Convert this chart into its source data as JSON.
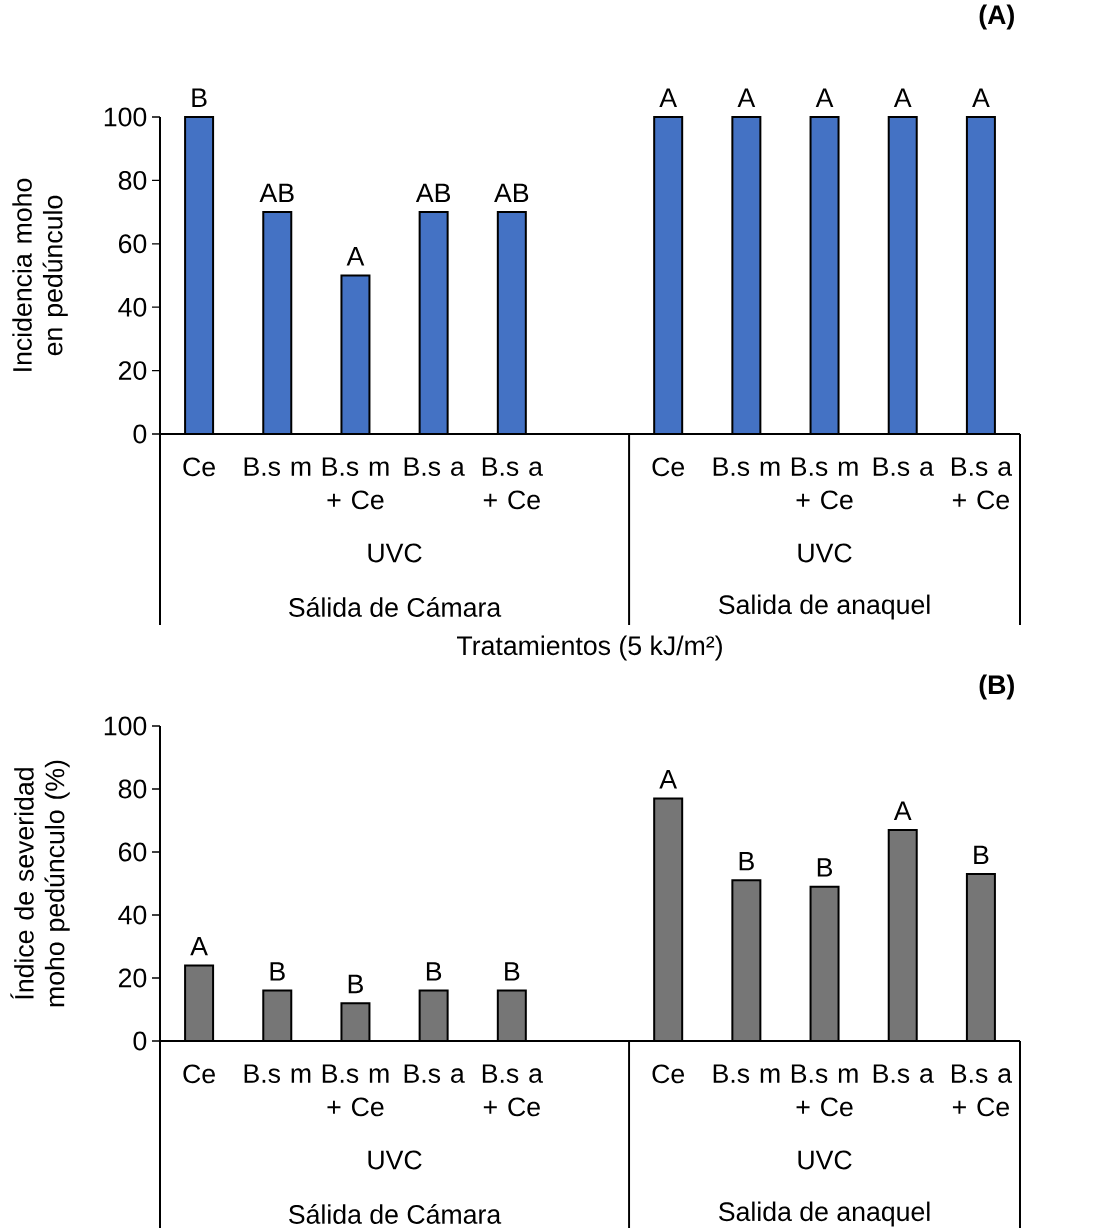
{
  "chart_data": [
    {
      "type": "bar",
      "title": "(A)",
      "xlabel": "Tratamientos (5 kJ/m²)",
      "ylabel": "Incidencia moho en pedúnculo",
      "categories": [
        "Ce",
        "B.s m",
        "B.s m + Ce",
        "B.s a",
        "B.s a + Ce",
        null,
        "Ce",
        "B.s m",
        "B.s m + Ce",
        "B.s a",
        "B.s a + Ce"
      ],
      "values": [
        100,
        70,
        50,
        70,
        70,
        null,
        100,
        100,
        100,
        100,
        100
      ],
      "value_labels": [
        "B",
        "AB",
        "A",
        "AB",
        "AB",
        null,
        "A",
        "A",
        "A",
        "A",
        "A"
      ],
      "color": "#4472c4",
      "ylim": [
        0,
        100
      ],
      "yticks": [
        0,
        20,
        40,
        60,
        80,
        100
      ],
      "annotations": [
        "UVC",
        "UVC",
        "Sálida de Cámara",
        "Salida de anaquel"
      ]
    },
    {
      "type": "bar",
      "title": "(B)",
      "ylabel": "Índice de severidad moho pedúnculo (%)",
      "categories": [
        "Ce",
        "B.s m",
        "B.s m + Ce",
        "B.s a",
        "B.s a + Ce",
        null,
        "Ce",
        "B.s m",
        "B.s m + Ce",
        "B.s a",
        "B.s a + Ce"
      ],
      "values": [
        24,
        16,
        12,
        16,
        16,
        null,
        77,
        51,
        49,
        67,
        53
      ],
      "value_labels": [
        "A",
        "B",
        "B",
        "B",
        "B",
        null,
        "A",
        "B",
        "B",
        "A",
        "B"
      ],
      "color": "#767676",
      "ylim": [
        0,
        100
      ],
      "yticks": [
        0,
        20,
        40,
        60,
        80,
        100
      ],
      "annotations": [
        "UVC",
        "UVC",
        "Sálida de Cámara",
        "Salida de anaquel"
      ]
    }
  ]
}
